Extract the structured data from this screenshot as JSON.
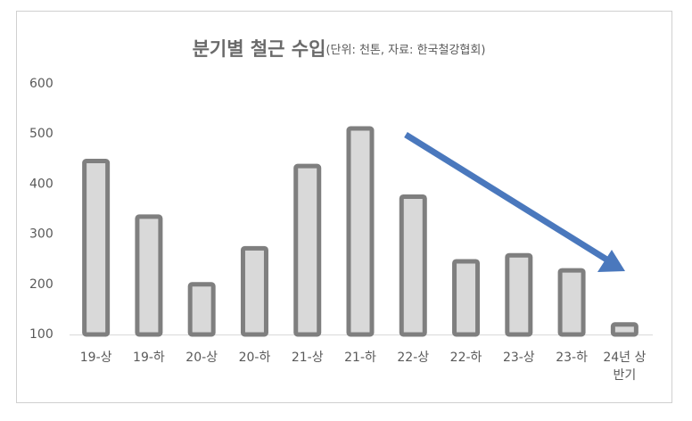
{
  "chart_data": {
    "type": "bar",
    "title": "분기별 철근 수입",
    "subtitle": "(단위: 천톤, 자료: 한국철강협회)",
    "categories": [
      "19-상",
      "19-하",
      "20-상",
      "20-하",
      "21-상",
      "21-하",
      "22-상",
      "22-하",
      "23-상",
      "23-하",
      "24년 상반기"
    ],
    "values": [
      446,
      335,
      200,
      272,
      436,
      511,
      375,
      246,
      258,
      228,
      120
    ],
    "color": "#d9d9d9",
    "edge_color": "#7f7f7f",
    "ylim": [
      100,
      600
    ],
    "yticks": [
      100,
      200,
      300,
      400,
      500,
      600
    ],
    "grid": false
  }
}
